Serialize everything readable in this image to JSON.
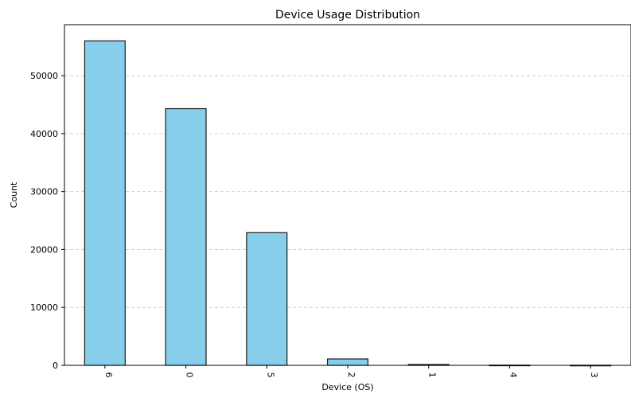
{
  "chart_data": {
    "type": "bar",
    "title": "Device Usage Distribution",
    "xlabel": "Device (OS)",
    "ylabel": "Count",
    "categories": [
      "6",
      "0",
      "5",
      "2",
      "1",
      "4",
      "3"
    ],
    "values": [
      56000,
      44300,
      22900,
      1100,
      150,
      40,
      20
    ],
    "ylim": [
      0,
      58800
    ],
    "yticks": [
      0,
      10000,
      20000,
      30000,
      40000,
      50000
    ],
    "grid": "y-dashed",
    "bar_color": "#87ceeb",
    "edge_color": "#1a1a1a"
  }
}
